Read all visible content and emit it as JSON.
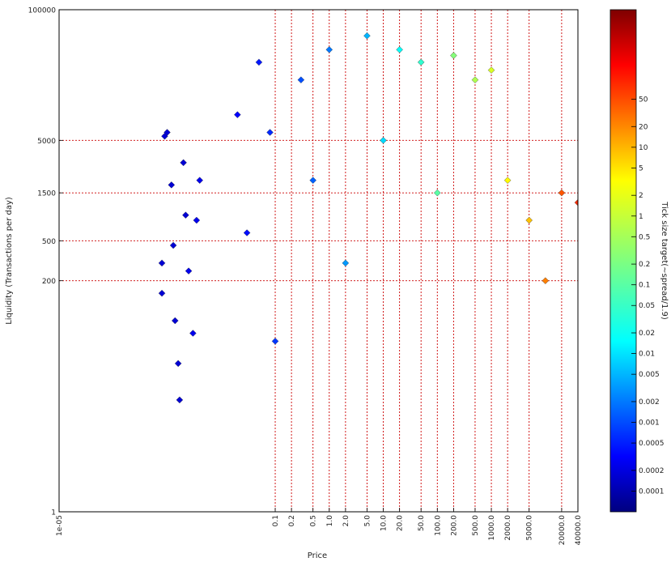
{
  "chart_data": {
    "type": "scatter",
    "xlabel": "Price",
    "ylabel": "Liquidity (Transactions per day)",
    "xscale": "log",
    "yscale": "log",
    "xlim": [
      1e-05,
      40000
    ],
    "ylim": [
      1,
      100000
    ],
    "x_ticks": [
      "1e-05",
      "0.1",
      "0.2",
      "0.5",
      "1.0",
      "2.0",
      "5.0",
      "10.0",
      "20.0",
      "50.0",
      "100.0",
      "200.0",
      "500.0",
      "1000.0",
      "2000.0",
      "5000.0",
      "20000.0",
      "40000.0"
    ],
    "x_tick_values": [
      1e-05,
      0.1,
      0.2,
      0.5,
      1,
      2,
      5,
      10,
      20,
      50,
      100,
      200,
      500,
      1000,
      2000,
      5000,
      20000,
      40000
    ],
    "y_ticks": [
      "1",
      "200",
      "500",
      "1500",
      "5000",
      "100000"
    ],
    "y_tick_values": [
      1,
      200,
      500,
      1500,
      5000,
      100000
    ],
    "grid": "red dotted lines at the labeled ticks",
    "marker": "diamond",
    "colorbar": {
      "label": "Tick size target(~spread/1.9)",
      "ticks": [
        "0.0001",
        "0.0002",
        "0.0005",
        "0.001",
        "0.002",
        "0.005",
        "0.01",
        "0.02",
        "0.05",
        "0.1",
        "0.2",
        "0.5",
        "1",
        "2",
        "5",
        "10",
        "20",
        "50"
      ],
      "scale": "log",
      "colormap": "jet",
      "range": [
        5e-05,
        1000
      ]
    },
    "series": [
      {
        "description_points_price_liquidity_color": true,
        "points": [
          [
            0.0008,
            300,
            0.0002
          ],
          [
            0.0008,
            150,
            0.0002
          ],
          [
            0.0009,
            5500,
            0.0002
          ],
          [
            0.001,
            6000,
            0.0002
          ],
          [
            0.0012,
            1800,
            0.0002
          ],
          [
            0.0013,
            450,
            0.0002
          ],
          [
            0.0014,
            80,
            0.0002
          ],
          [
            0.0016,
            30,
            0.0002
          ],
          [
            0.0017,
            13,
            0.0002
          ],
          [
            0.002,
            3000,
            0.0002
          ],
          [
            0.0022,
            900,
            0.0002
          ],
          [
            0.0025,
            250,
            0.0003
          ],
          [
            0.003,
            60,
            0.0003
          ],
          [
            0.0035,
            800,
            0.0003
          ],
          [
            0.004,
            2000,
            0.0003
          ],
          [
            0.02,
            9000,
            0.0004
          ],
          [
            0.03,
            600,
            0.0005
          ],
          [
            0.05,
            30000,
            0.0006
          ],
          [
            0.08,
            6000,
            0.0008
          ],
          [
            0.1,
            50,
            0.001
          ],
          [
            0.3,
            20000,
            0.0015
          ],
          [
            0.5,
            2000,
            0.002
          ],
          [
            1,
            40000,
            0.003
          ],
          [
            2,
            300,
            0.005
          ],
          [
            5,
            55000,
            0.008
          ],
          [
            10,
            5000,
            0.015
          ],
          [
            20,
            40000,
            0.03
          ],
          [
            50,
            30000,
            0.06
          ],
          [
            100,
            1500,
            0.12
          ],
          [
            200,
            35000,
            0.25
          ],
          [
            500,
            20000,
            0.5
          ],
          [
            1000,
            25000,
            1
          ],
          [
            2000,
            2000,
            2
          ],
          [
            5000,
            800,
            5
          ],
          [
            10000,
            200,
            15
          ],
          [
            20000,
            1500,
            30
          ],
          [
            40000,
            1200,
            60
          ]
        ]
      }
    ]
  }
}
